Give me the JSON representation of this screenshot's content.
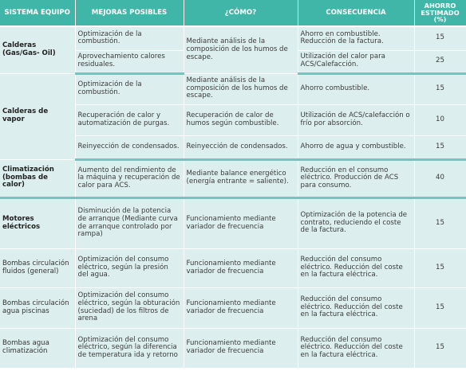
{
  "headers": {
    "sistema": "SISTEMA EQUIPO",
    "mejoras": "MEJORAS POSIBLES",
    "como": "¿CÓMO?",
    "consecuencia": "CONSECUENCIA",
    "ahorro_1": "AHORRO",
    "ahorro_2": "ESTIMADO",
    "ahorro_3": "(%)"
  },
  "groups": [
    {
      "system": "Calderas (Gas/Gas- Oil)",
      "rows": [
        {
          "mejora": "Optimización de la combustión.",
          "como": "Mediante análisis de la composición de los humos de escape.",
          "consecuencia": "Ahorro en combustible. Reducción de la factura.",
          "ahorro": "15"
        },
        {
          "mejora": "Aprovechamiento calores residuales.",
          "consecuencia": "Utilización del calor para ACS/Calefacción.",
          "ahorro": "25"
        }
      ]
    },
    {
      "system": "Calderas de vapor",
      "rows": [
        {
          "mejora": "Optimización de la combustión.",
          "como": "Mediante análisis de la composición de los humos de escape.",
          "consecuencia": "Ahorro combustible.",
          "ahorro": "15"
        },
        {
          "mejora": "Recuperación de calor y automatización de purgas.",
          "como": "Recuperación de calor de humos según combustible.",
          "consecuencia": "Utilización de ACS/calefacción o frío por absorción.",
          "ahorro": "10"
        },
        {
          "mejora": "Reinyección de condensados.",
          "como": "Reinyección de condensados.",
          "consecuencia": "Ahorro de agua y combustible.",
          "ahorro": "15"
        }
      ]
    },
    {
      "system": "Climatización (bombas de calor)",
      "rows": [
        {
          "mejora": "Aumento del rendimiento de la máquina y recuperación de calor para ACS.",
          "como": "Mediante balance energético (energía entrante = saliente).",
          "consecuencia": "Reducción en el consumo eléctrico. Producción de ACS para consumo.",
          "ahorro": "40"
        }
      ]
    },
    {
      "system": "Motores eléctricos",
      "rows": [
        {
          "mejora": "Disminución de la potencia de arranque (Mediante curva de arranque controlado por rampa)",
          "como": "Funcionamiento mediante variador de frecuencia",
          "consecuencia": "Optimización de la potencia de contrato, reduciendo el coste de la factura.",
          "ahorro": "15"
        }
      ]
    },
    {
      "system": "Bombas circulación fluidos (general)",
      "rows": [
        {
          "mejora": "Optimización del consumo eléctrico, según la presión del agua.",
          "como": "Funcionamiento mediante variador de frecuencia",
          "consecuencia": "Reducción del consumo eléctrico. Reducción del coste en la factura eléctrica.",
          "ahorro": "15"
        }
      ]
    },
    {
      "system": "Bombas circulación agua piscinas",
      "rows": [
        {
          "mejora": "Optimización del consumo eléctrico, según la obturación (suciedad) de los filtros de arena",
          "como": "Funcionamiento mediante variador de frecuencia",
          "consecuencia": "Reducción del consumo eléctrico. Reducción del coste en la factura eléctrica.",
          "ahorro": "15"
        }
      ]
    },
    {
      "system": "Bombas agua climatización",
      "rows": [
        {
          "mejora": "Optimización del consumo eléctrico, según la diferencia de temperatura ida y retorno",
          "como": "Funcionamiento mediante variador de frecuencia",
          "consecuencia": "Reducción del consumo eléctrico. Reducción del coste en la factura eléctrica.",
          "ahorro": "15"
        }
      ]
    }
  ]
}
